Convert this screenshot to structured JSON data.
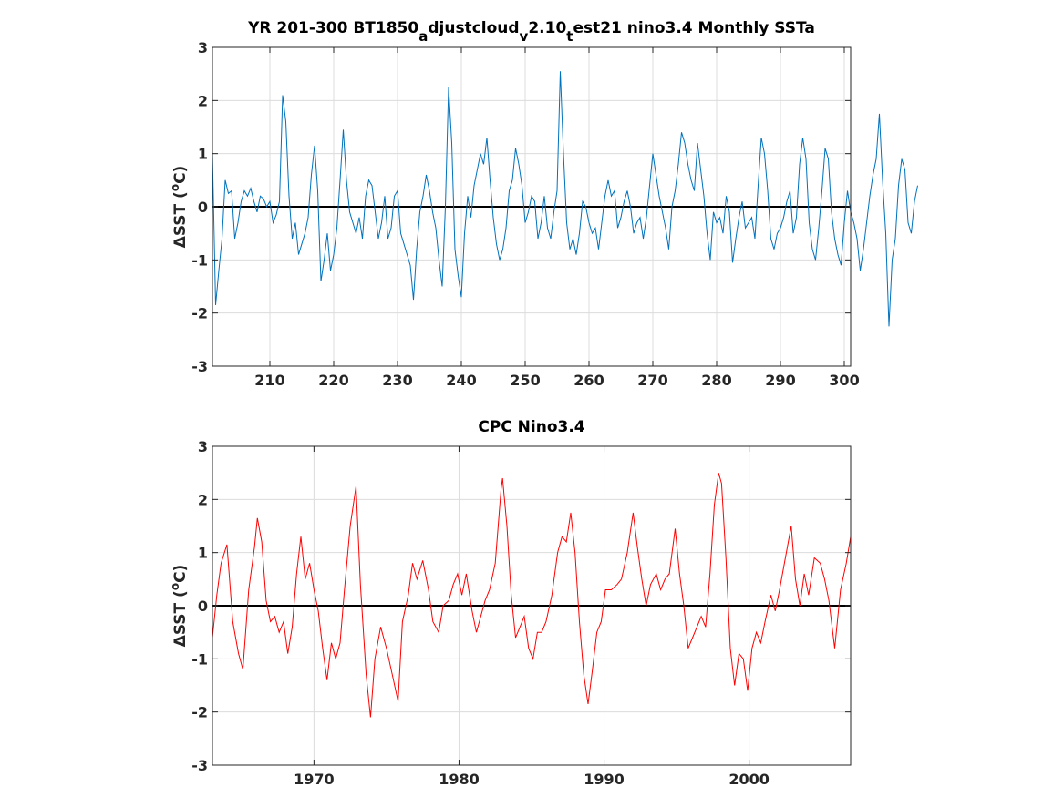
{
  "chart_data": [
    {
      "type": "line",
      "title_parts": [
        {
          "text": "YR 201-300 BT1850",
          "sub": false
        },
        {
          "text": "a",
          "sub": true
        },
        {
          "text": "djustcloud",
          "sub": false
        },
        {
          "text": "v",
          "sub": true
        },
        {
          "text": "2.10",
          "sub": false
        },
        {
          "text": "t",
          "sub": true
        },
        {
          "text": "est21 nino3.4 Monthly SSTa",
          "sub": false
        }
      ],
      "ylabel_prefix": "ΔSST (",
      "ylabel_sup": "o",
      "ylabel_suffix": "C)",
      "xlim": [
        201,
        301
      ],
      "ylim": [
        -3,
        3
      ],
      "xticks": [
        210,
        220,
        230,
        240,
        250,
        260,
        270,
        280,
        290,
        300
      ],
      "yticks": [
        -3,
        -2,
        -1,
        0,
        1,
        2,
        3
      ],
      "grid": true,
      "zero_line": true,
      "line_color": "#0072BD",
      "x_step": 0.5,
      "x_start": 201,
      "y": [
        1.0,
        -1.85,
        -1.2,
        -0.6,
        0.5,
        0.25,
        0.3,
        -0.6,
        -0.3,
        0.1,
        0.3,
        0.2,
        0.35,
        0.1,
        -0.1,
        0.2,
        0.15,
        0.0,
        0.1,
        -0.3,
        -0.15,
        0.1,
        2.1,
        1.6,
        0.2,
        -0.6,
        -0.3,
        -0.9,
        -0.7,
        -0.5,
        -0.2,
        0.6,
        1.15,
        0.3,
        -1.4,
        -1.0,
        -0.5,
        -1.2,
        -0.9,
        -0.4,
        0.5,
        1.45,
        0.5,
        -0.1,
        -0.3,
        -0.5,
        -0.2,
        -0.6,
        0.2,
        0.5,
        0.4,
        -0.1,
        -0.6,
        -0.3,
        0.2,
        -0.6,
        -0.4,
        0.2,
        0.3,
        -0.5,
        -0.7,
        -0.9,
        -1.1,
        -1.75,
        -0.8,
        -0.1,
        0.2,
        0.6,
        0.3,
        -0.1,
        -0.4,
        -1.0,
        -1.5,
        0.0,
        2.25,
        1.2,
        -0.8,
        -1.3,
        -1.7,
        -0.5,
        0.2,
        -0.2,
        0.4,
        0.7,
        1.0,
        0.8,
        1.3,
        0.5,
        -0.2,
        -0.7,
        -1.0,
        -0.8,
        -0.4,
        0.3,
        0.5,
        1.1,
        0.8,
        0.4,
        -0.3,
        -0.1,
        0.2,
        0.1,
        -0.6,
        -0.3,
        0.2,
        -0.4,
        -0.6,
        -0.1,
        0.3,
        2.55,
        1.0,
        -0.3,
        -0.8,
        -0.6,
        -0.9,
        -0.5,
        0.1,
        0.0,
        -0.3,
        -0.5,
        -0.4,
        -0.8,
        -0.3,
        0.2,
        0.5,
        0.2,
        0.3,
        -0.4,
        -0.2,
        0.1,
        0.3,
        0.0,
        -0.5,
        -0.3,
        -0.2,
        -0.6,
        -0.2,
        0.4,
        1.0,
        0.6,
        0.2,
        -0.1,
        -0.4,
        -0.8,
        0.0,
        0.3,
        0.8,
        1.4,
        1.2,
        0.8,
        0.5,
        0.3,
        1.2,
        0.7,
        0.2,
        -0.5,
        -1.0,
        -0.1,
        -0.3,
        -0.2,
        -0.5,
        0.2,
        -0.1,
        -1.05,
        -0.6,
        -0.2,
        0.1,
        -0.4,
        -0.3,
        -0.2,
        -0.6,
        0.4,
        1.3,
        1.0,
        0.3,
        -0.6,
        -0.8,
        -0.5,
        -0.4,
        -0.2,
        0.1,
        0.3,
        -0.5,
        -0.2,
        0.8,
        1.3,
        0.9,
        -0.3,
        -0.8,
        -1.0,
        -0.4,
        0.3,
        1.1,
        0.9,
        -0.1,
        -0.6,
        -0.9,
        -1.1,
        -0.3,
        0.3,
        -0.1,
        -0.3,
        -0.6,
        -1.2,
        -0.8,
        -0.3,
        0.2,
        0.6,
        0.9,
        1.75,
        0.5,
        -0.5,
        -2.25,
        -1.0,
        -0.6,
        0.4,
        0.9,
        0.7,
        -0.3,
        -0.5,
        0.1,
        0.4
      ],
      "note": "digitized approximately at half-year resolution"
    },
    {
      "type": "line",
      "title": "CPC Nino3.4",
      "ylabel_prefix": "ΔSST (",
      "ylabel_sup": "o",
      "ylabel_suffix": "C)",
      "xlim": [
        1963,
        2007
      ],
      "ylim": [
        -3,
        3
      ],
      "xticks": [
        1970,
        1980,
        1990,
        2000
      ],
      "yticks": [
        -3,
        -2,
        -1,
        0,
        1,
        2,
        3
      ],
      "grid": true,
      "zero_line": true,
      "line_color": "#FF0000",
      "points": [
        [
          1963.0,
          -0.6
        ],
        [
          1963.3,
          0.2
        ],
        [
          1963.6,
          0.8
        ],
        [
          1964.0,
          1.15
        ],
        [
          1964.4,
          -0.3
        ],
        [
          1964.8,
          -0.9
        ],
        [
          1965.1,
          -1.2
        ],
        [
          1965.5,
          0.3
        ],
        [
          1965.9,
          1.1
        ],
        [
          1966.1,
          1.65
        ],
        [
          1966.4,
          1.2
        ],
        [
          1966.7,
          0.1
        ],
        [
          1967.0,
          -0.3
        ],
        [
          1967.3,
          -0.2
        ],
        [
          1967.6,
          -0.5
        ],
        [
          1967.9,
          -0.3
        ],
        [
          1968.2,
          -0.9
        ],
        [
          1968.5,
          -0.4
        ],
        [
          1968.8,
          0.6
        ],
        [
          1969.1,
          1.3
        ],
        [
          1969.4,
          0.5
        ],
        [
          1969.7,
          0.8
        ],
        [
          1970.0,
          0.3
        ],
        [
          1970.3,
          -0.1
        ],
        [
          1970.6,
          -0.8
        ],
        [
          1970.9,
          -1.4
        ],
        [
          1971.2,
          -0.7
        ],
        [
          1971.5,
          -1.0
        ],
        [
          1971.8,
          -0.7
        ],
        [
          1972.1,
          0.3
        ],
        [
          1972.5,
          1.5
        ],
        [
          1972.9,
          2.25
        ],
        [
          1973.2,
          0.4
        ],
        [
          1973.6,
          -1.3
        ],
        [
          1973.9,
          -2.1
        ],
        [
          1974.2,
          -1.0
        ],
        [
          1974.6,
          -0.4
        ],
        [
          1975.0,
          -0.8
        ],
        [
          1975.4,
          -1.3
        ],
        [
          1975.8,
          -1.8
        ],
        [
          1976.1,
          -0.3
        ],
        [
          1976.5,
          0.2
        ],
        [
          1976.8,
          0.8
        ],
        [
          1977.1,
          0.5
        ],
        [
          1977.5,
          0.85
        ],
        [
          1977.9,
          0.3
        ],
        [
          1978.2,
          -0.3
        ],
        [
          1978.6,
          -0.5
        ],
        [
          1978.9,
          0.0
        ],
        [
          1979.3,
          0.1
        ],
        [
          1979.6,
          0.4
        ],
        [
          1979.9,
          0.6
        ],
        [
          1980.2,
          0.2
        ],
        [
          1980.5,
          0.6
        ],
        [
          1980.9,
          -0.1
        ],
        [
          1981.2,
          -0.5
        ],
        [
          1981.5,
          -0.2
        ],
        [
          1981.8,
          0.1
        ],
        [
          1982.1,
          0.3
        ],
        [
          1982.5,
          0.8
        ],
        [
          1982.9,
          2.2
        ],
        [
          1983.0,
          2.4
        ],
        [
          1983.3,
          1.5
        ],
        [
          1983.6,
          0.2
        ],
        [
          1983.9,
          -0.6
        ],
        [
          1984.2,
          -0.4
        ],
        [
          1984.5,
          -0.2
        ],
        [
          1984.8,
          -0.8
        ],
        [
          1985.1,
          -1.0
        ],
        [
          1985.4,
          -0.5
        ],
        [
          1985.7,
          -0.5
        ],
        [
          1986.0,
          -0.3
        ],
        [
          1986.4,
          0.2
        ],
        [
          1986.8,
          1.0
        ],
        [
          1987.1,
          1.3
        ],
        [
          1987.4,
          1.2
        ],
        [
          1987.7,
          1.75
        ],
        [
          1988.0,
          1.0
        ],
        [
          1988.3,
          -0.3
        ],
        [
          1988.6,
          -1.3
        ],
        [
          1988.9,
          -1.85
        ],
        [
          1989.2,
          -1.2
        ],
        [
          1989.5,
          -0.5
        ],
        [
          1989.8,
          -0.3
        ],
        [
          1990.1,
          0.3
        ],
        [
          1990.5,
          0.3
        ],
        [
          1990.9,
          0.4
        ],
        [
          1991.2,
          0.5
        ],
        [
          1991.6,
          1.0
        ],
        [
          1992.0,
          1.75
        ],
        [
          1992.3,
          1.1
        ],
        [
          1992.6,
          0.5
        ],
        [
          1992.9,
          0.0
        ],
        [
          1993.2,
          0.4
        ],
        [
          1993.6,
          0.6
        ],
        [
          1993.9,
          0.3
        ],
        [
          1994.2,
          0.5
        ],
        [
          1994.5,
          0.6
        ],
        [
          1994.9,
          1.45
        ],
        [
          1995.2,
          0.6
        ],
        [
          1995.5,
          0.0
        ],
        [
          1995.8,
          -0.8
        ],
        [
          1996.1,
          -0.6
        ],
        [
          1996.4,
          -0.4
        ],
        [
          1996.7,
          -0.2
        ],
        [
          1997.0,
          -0.4
        ],
        [
          1997.3,
          0.6
        ],
        [
          1997.6,
          1.9
        ],
        [
          1997.9,
          2.5
        ],
        [
          1998.1,
          2.3
        ],
        [
          1998.4,
          0.9
        ],
        [
          1998.7,
          -0.8
        ],
        [
          1999.0,
          -1.5
        ],
        [
          1999.3,
          -0.9
        ],
        [
          1999.6,
          -1.0
        ],
        [
          1999.9,
          -1.6
        ],
        [
          2000.2,
          -0.8
        ],
        [
          2000.5,
          -0.5
        ],
        [
          2000.8,
          -0.7
        ],
        [
          2001.1,
          -0.3
        ],
        [
          2001.5,
          0.2
        ],
        [
          2001.8,
          -0.1
        ],
        [
          2002.1,
          0.3
        ],
        [
          2002.5,
          0.9
        ],
        [
          2002.9,
          1.5
        ],
        [
          2003.2,
          0.5
        ],
        [
          2003.5,
          0.0
        ],
        [
          2003.8,
          0.6
        ],
        [
          2004.1,
          0.2
        ],
        [
          2004.5,
          0.9
        ],
        [
          2004.9,
          0.8
        ],
        [
          2005.2,
          0.5
        ],
        [
          2005.5,
          0.1
        ],
        [
          2005.9,
          -0.8
        ],
        [
          2006.3,
          0.3
        ],
        [
          2006.7,
          0.8
        ],
        [
          2007.0,
          1.3
        ]
      ],
      "note": "digitized approximately"
    }
  ]
}
